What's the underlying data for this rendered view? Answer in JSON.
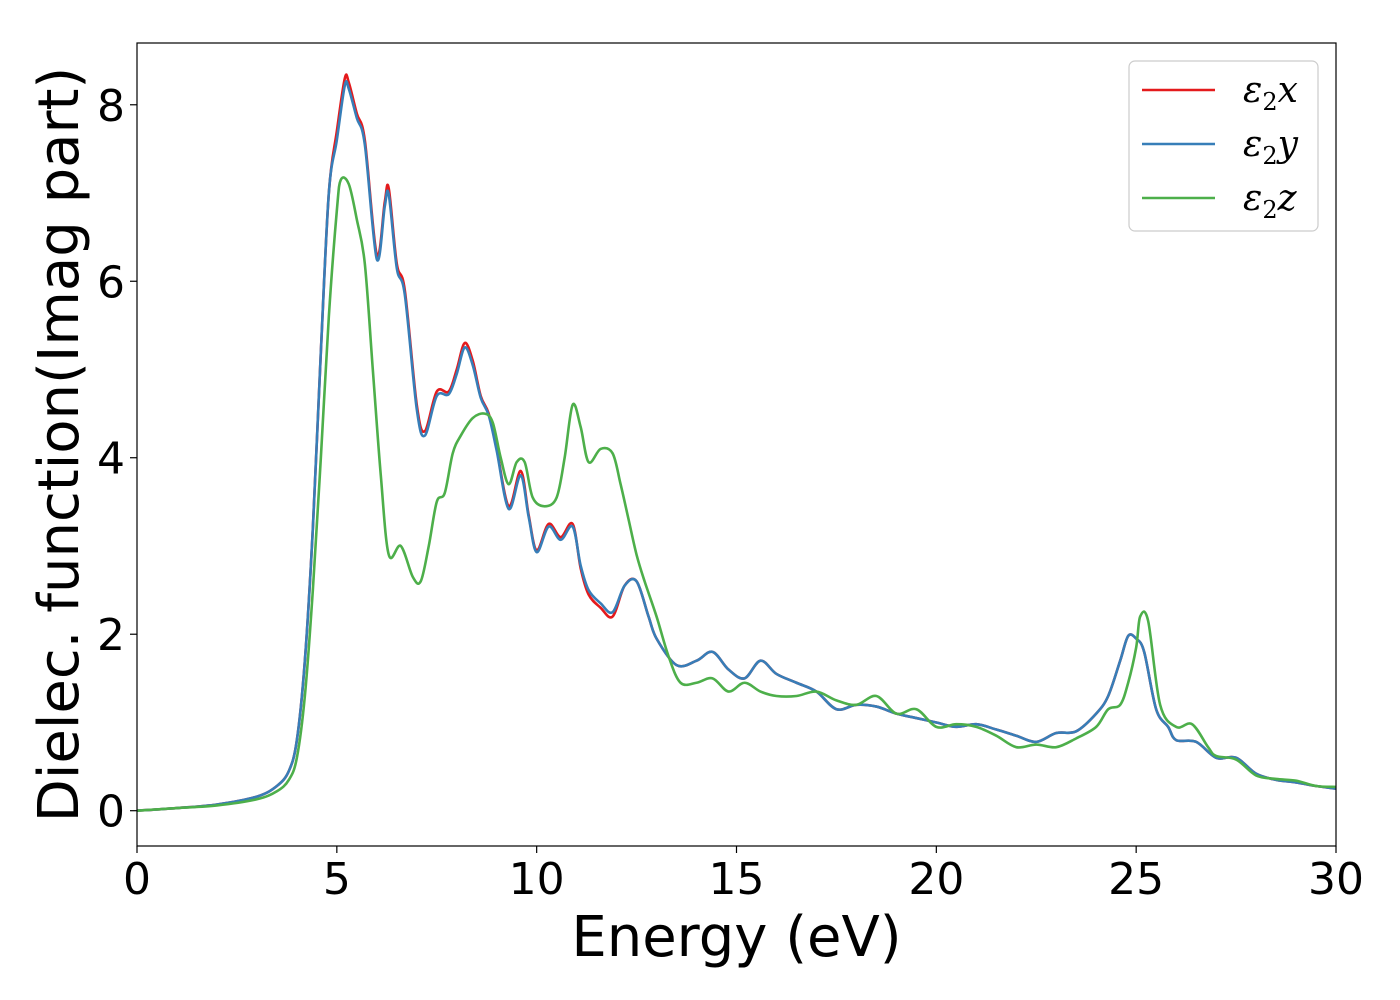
{
  "chart_data": {
    "type": "line",
    "title": "",
    "xlabel": "Energy (eV)",
    "ylabel": "Dielec. function(Imag part)",
    "xlim": [
      0,
      30
    ],
    "ylim": [
      -0.4,
      8.7
    ],
    "xticks": [
      0,
      5,
      10,
      15,
      20,
      25,
      30
    ],
    "yticks": [
      0,
      2,
      4,
      6,
      8
    ],
    "grid": false,
    "legend_position": "top-right",
    "series": [
      {
        "name": "ε2x",
        "name_parts": {
          "base": "ε",
          "sub": "2",
          "suffix": "x"
        },
        "color": "#e41a1c",
        "x": [
          0,
          1,
          2,
          3,
          3.5,
          3.8,
          4.0,
          4.2,
          4.4,
          4.6,
          4.8,
          5.0,
          5.2,
          5.3,
          5.5,
          5.7,
          6.0,
          6.2,
          6.3,
          6.5,
          6.7,
          7.0,
          7.2,
          7.5,
          7.8,
          8.0,
          8.2,
          8.4,
          8.6,
          8.8,
          9.0,
          9.3,
          9.6,
          9.8,
          10.0,
          10.3,
          10.6,
          10.9,
          11.1,
          11.3,
          11.6,
          11.9,
          12.2,
          12.5,
          12.8,
          13.0,
          13.5,
          14.0,
          14.4,
          14.8,
          15.2,
          15.6,
          16.0,
          16.5,
          17.0,
          17.5,
          18.0,
          18.5,
          19.0,
          19.5,
          20.0,
          20.5,
          21.0,
          21.5,
          22.0,
          22.5,
          23.0,
          23.5,
          24.0,
          24.3,
          24.6,
          24.8,
          25.0,
          25.2,
          25.5,
          25.8,
          26.0,
          26.5,
          27.0,
          27.5,
          28.0,
          28.5,
          29.0,
          29.5,
          30.0
        ],
        "y": [
          0,
          0.03,
          0.07,
          0.16,
          0.28,
          0.45,
          0.8,
          1.7,
          3.2,
          5.2,
          7.0,
          7.7,
          8.3,
          8.25,
          7.9,
          7.6,
          6.3,
          6.9,
          7.05,
          6.2,
          5.9,
          4.6,
          4.3,
          4.75,
          4.75,
          5.0,
          5.3,
          5.1,
          4.7,
          4.5,
          4.1,
          3.45,
          3.85,
          3.35,
          2.95,
          3.25,
          3.1,
          3.25,
          2.75,
          2.45,
          2.3,
          2.2,
          2.55,
          2.6,
          2.2,
          1.95,
          1.65,
          1.7,
          1.8,
          1.6,
          1.5,
          1.7,
          1.55,
          1.45,
          1.35,
          1.15,
          1.2,
          1.18,
          1.1,
          1.05,
          1.0,
          0.95,
          0.98,
          0.92,
          0.85,
          0.78,
          0.88,
          0.9,
          1.1,
          1.3,
          1.7,
          1.98,
          1.95,
          1.8,
          1.15,
          0.95,
          0.8,
          0.78,
          0.6,
          0.6,
          0.42,
          0.35,
          0.32,
          0.28,
          0.25
        ]
      },
      {
        "name": "ε2y",
        "name_parts": {
          "base": "ε",
          "sub": "2",
          "suffix": "y"
        },
        "color": "#377eb8",
        "x": [
          0,
          1,
          2,
          3,
          3.5,
          3.8,
          4.0,
          4.2,
          4.4,
          4.6,
          4.8,
          5.0,
          5.2,
          5.3,
          5.5,
          5.7,
          6.0,
          6.2,
          6.3,
          6.5,
          6.7,
          7.0,
          7.2,
          7.5,
          7.8,
          8.0,
          8.2,
          8.4,
          8.6,
          8.8,
          9.0,
          9.3,
          9.6,
          9.8,
          10.0,
          10.3,
          10.6,
          10.9,
          11.1,
          11.3,
          11.6,
          11.9,
          12.2,
          12.5,
          12.8,
          13.0,
          13.5,
          14.0,
          14.4,
          14.8,
          15.2,
          15.6,
          16.0,
          16.5,
          17.0,
          17.5,
          18.0,
          18.5,
          19.0,
          19.5,
          20.0,
          20.5,
          21.0,
          21.5,
          22.0,
          22.5,
          23.0,
          23.5,
          24.0,
          24.3,
          24.6,
          24.8,
          25.0,
          25.2,
          25.5,
          25.8,
          26.0,
          26.5,
          27.0,
          27.5,
          28.0,
          28.5,
          29.0,
          29.5,
          30.0
        ],
        "y": [
          0,
          0.03,
          0.07,
          0.16,
          0.28,
          0.45,
          0.8,
          1.7,
          3.2,
          5.2,
          7.0,
          7.6,
          8.22,
          8.18,
          7.85,
          7.55,
          6.25,
          6.85,
          6.98,
          6.15,
          5.85,
          4.55,
          4.25,
          4.7,
          4.72,
          4.95,
          5.25,
          5.05,
          4.68,
          4.48,
          4.08,
          3.42,
          3.8,
          3.33,
          2.93,
          3.22,
          3.07,
          3.22,
          2.78,
          2.5,
          2.35,
          2.25,
          2.55,
          2.6,
          2.2,
          1.95,
          1.65,
          1.7,
          1.8,
          1.6,
          1.5,
          1.7,
          1.55,
          1.45,
          1.35,
          1.15,
          1.2,
          1.18,
          1.1,
          1.05,
          1.0,
          0.95,
          0.98,
          0.92,
          0.85,
          0.78,
          0.88,
          0.9,
          1.1,
          1.3,
          1.7,
          1.98,
          1.95,
          1.8,
          1.15,
          0.95,
          0.8,
          0.78,
          0.6,
          0.6,
          0.42,
          0.35,
          0.32,
          0.28,
          0.25
        ]
      },
      {
        "name": "ε2z",
        "name_parts": {
          "base": "ε",
          "sub": "2",
          "suffix": "z"
        },
        "color": "#4daf4a",
        "x": [
          0,
          1,
          2,
          3,
          3.5,
          3.8,
          4.0,
          4.2,
          4.4,
          4.6,
          4.8,
          5.0,
          5.1,
          5.3,
          5.5,
          5.7,
          5.9,
          6.1,
          6.3,
          6.6,
          6.9,
          7.1,
          7.3,
          7.5,
          7.7,
          7.9,
          8.1,
          8.4,
          8.7,
          8.9,
          9.1,
          9.3,
          9.5,
          9.7,
          9.9,
          10.2,
          10.5,
          10.7,
          10.9,
          11.1,
          11.3,
          11.6,
          11.9,
          12.1,
          12.3,
          12.5,
          12.7,
          13.0,
          13.3,
          13.6,
          14.0,
          14.4,
          14.8,
          15.2,
          15.6,
          16.0,
          16.5,
          17.0,
          17.5,
          18.0,
          18.5,
          19.0,
          19.5,
          20.0,
          20.5,
          21.0,
          21.5,
          22.0,
          22.5,
          23.0,
          23.5,
          24.0,
          24.3,
          24.6,
          24.8,
          25.0,
          25.1,
          25.3,
          25.6,
          26.0,
          26.4,
          26.8,
          27.0,
          27.5,
          28.0,
          28.5,
          29.0,
          29.5,
          30.0
        ],
        "y": [
          0,
          0.03,
          0.06,
          0.13,
          0.22,
          0.35,
          0.6,
          1.3,
          2.5,
          4.0,
          5.6,
          6.8,
          7.15,
          7.1,
          6.7,
          6.2,
          5.0,
          3.8,
          2.9,
          3.0,
          2.65,
          2.6,
          3.0,
          3.5,
          3.6,
          4.05,
          4.25,
          4.45,
          4.5,
          4.4,
          4.0,
          3.7,
          3.95,
          3.95,
          3.55,
          3.45,
          3.55,
          4.0,
          4.6,
          4.35,
          3.95,
          4.1,
          4.05,
          3.7,
          3.3,
          2.9,
          2.6,
          2.2,
          1.75,
          1.45,
          1.45,
          1.5,
          1.35,
          1.45,
          1.35,
          1.3,
          1.3,
          1.35,
          1.25,
          1.2,
          1.3,
          1.1,
          1.15,
          0.95,
          0.98,
          0.95,
          0.85,
          0.72,
          0.75,
          0.72,
          0.82,
          0.95,
          1.15,
          1.2,
          1.45,
          1.85,
          2.2,
          2.15,
          1.2,
          0.95,
          0.98,
          0.72,
          0.62,
          0.58,
          0.4,
          0.36,
          0.34,
          0.28,
          0.27
        ]
      }
    ]
  }
}
